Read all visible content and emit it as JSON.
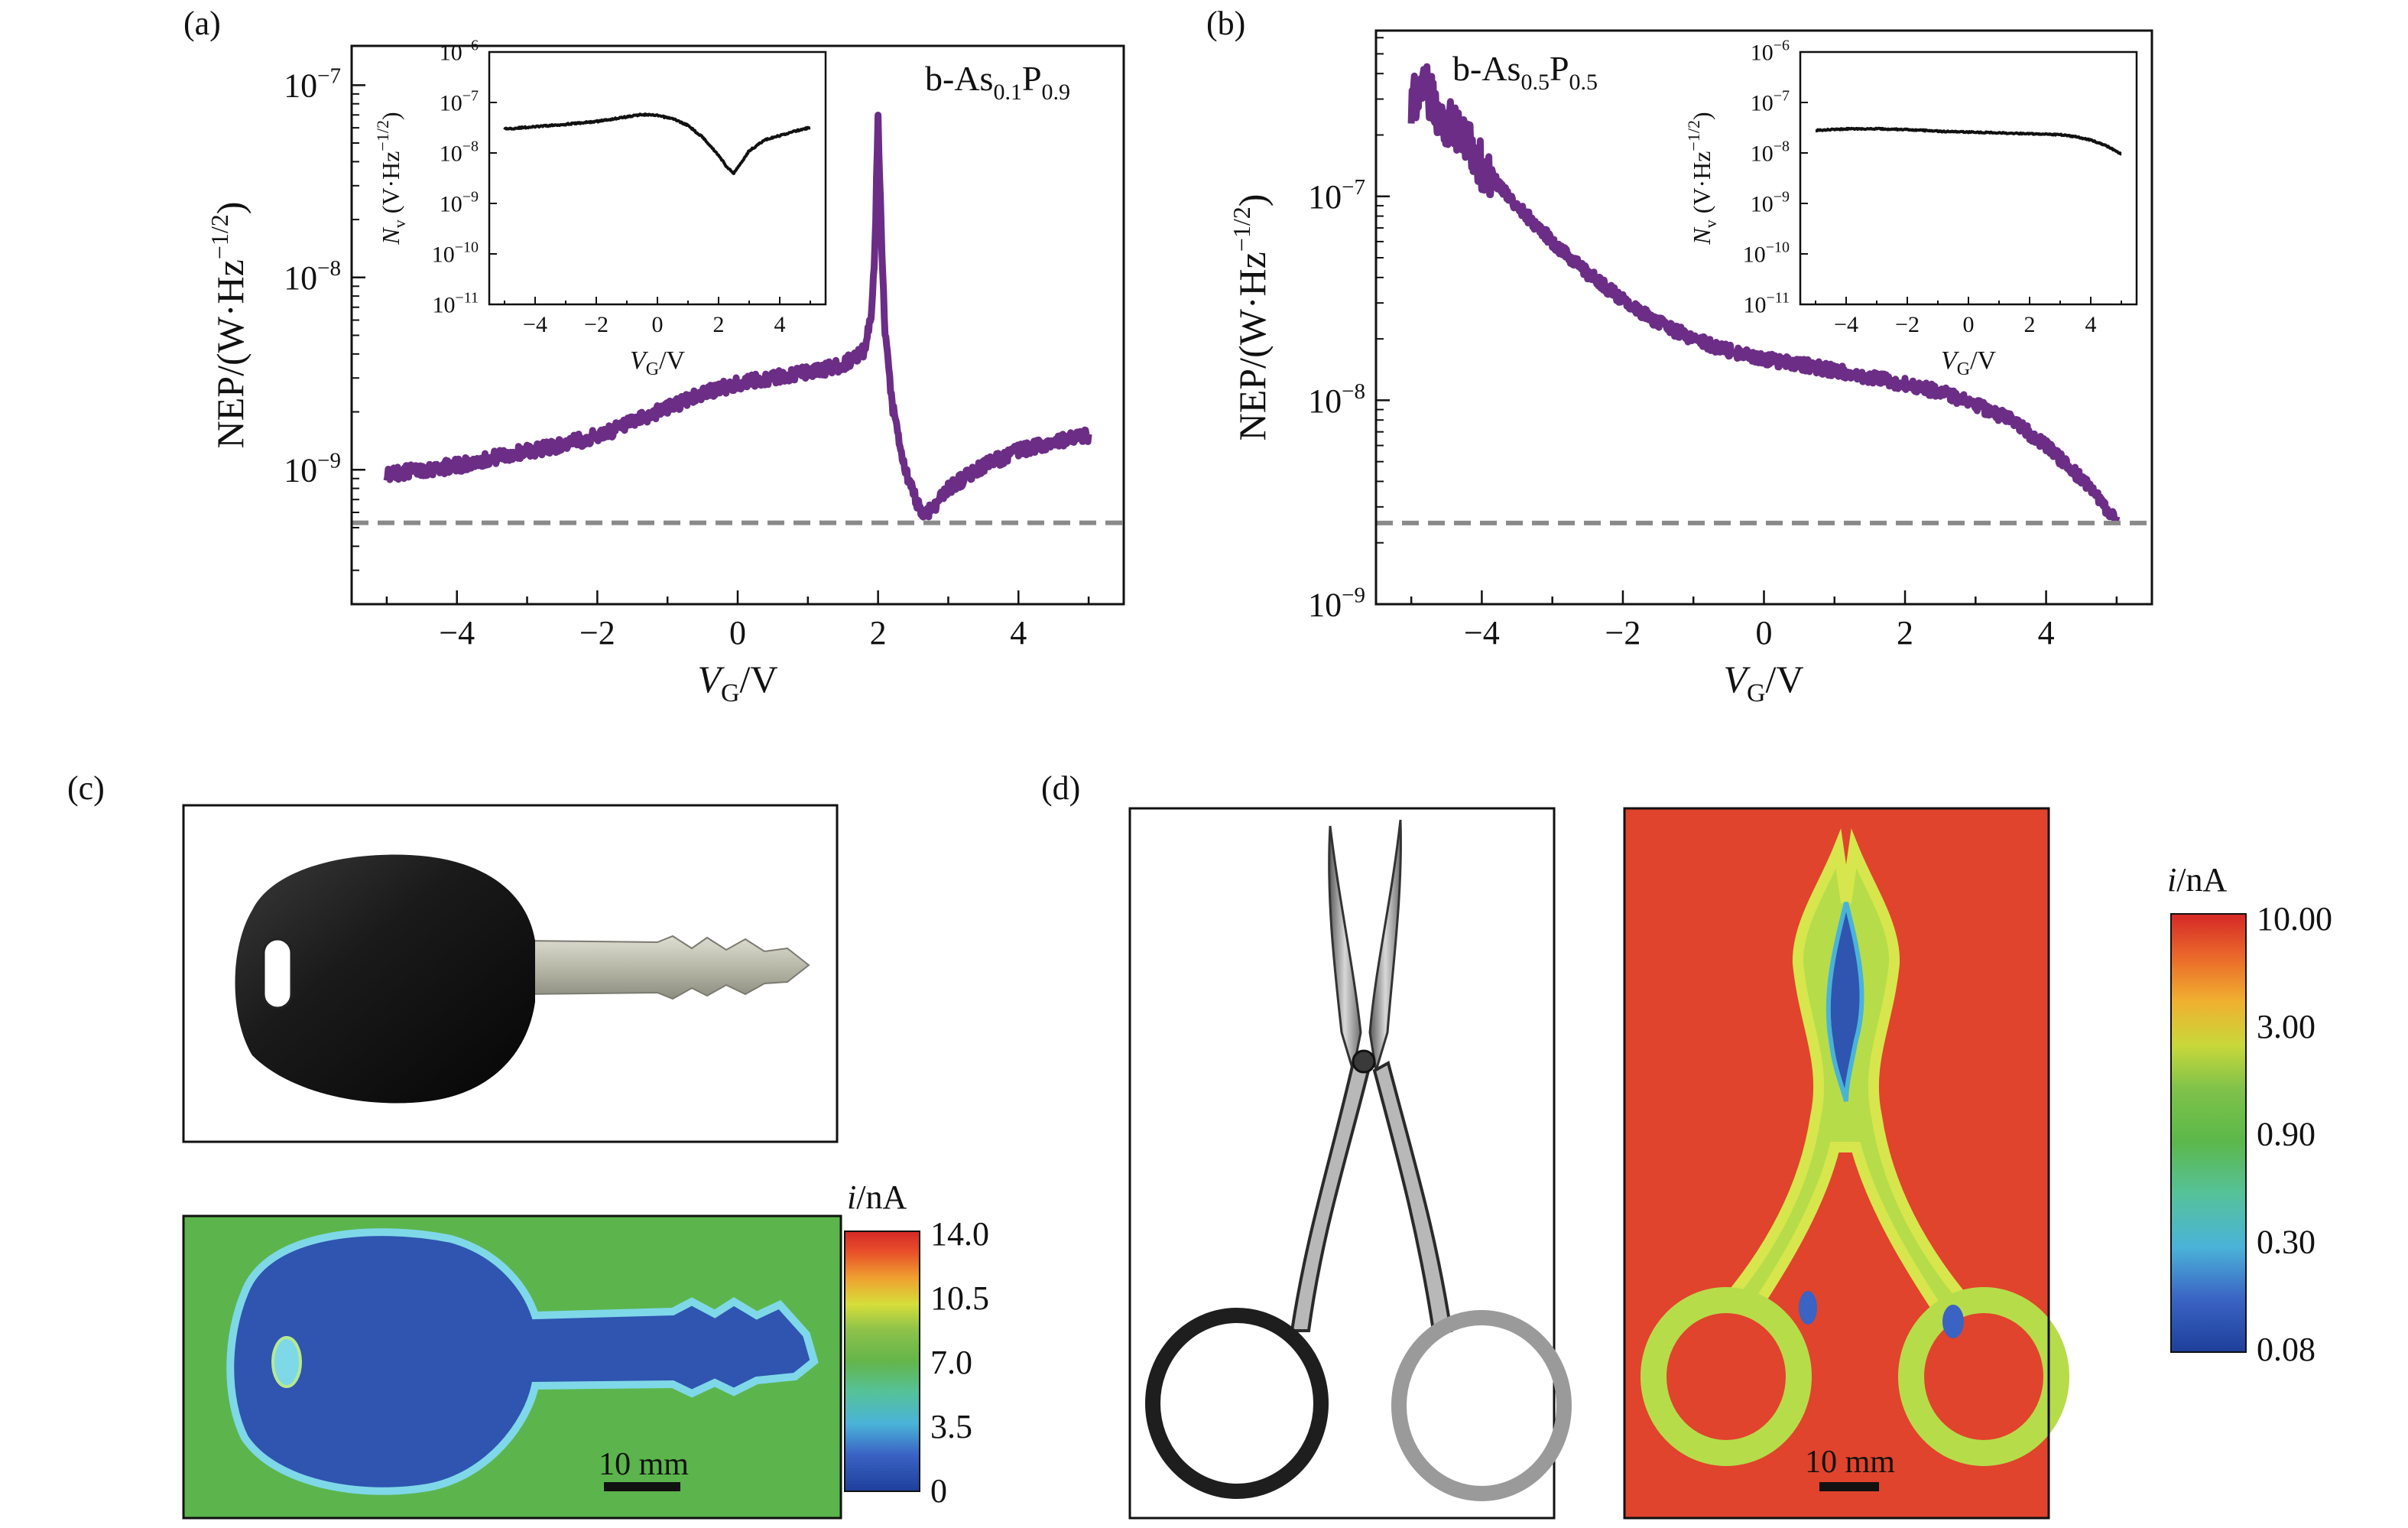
{
  "panel_labels": {
    "a": "(a)",
    "b": "(b)",
    "c": "(c)",
    "d": "(d)"
  },
  "colors": {
    "curve": "#6b2d86",
    "dashed": "#8a8a8a",
    "inset_curve": "#111111"
  },
  "chart_data": [
    {
      "id": "a",
      "type": "line",
      "y_scale": "log",
      "xlabel_main": "V",
      "xlabel_sub": "G",
      "xlabel_unit": "/V",
      "ylabel": "NEP/(W·Hz",
      "ylabel_exp": "−1/2",
      "ylabel_close": ")",
      "xlim": [
        -5.5,
        5.5
      ],
      "ylim": [
        2e-10,
        1.6e-07
      ],
      "x_ticks": [
        -4,
        -2,
        0,
        2,
        4
      ],
      "x_tick_labels": [
        "−4",
        "−2",
        "0",
        "2",
        "4"
      ],
      "y_ticks": [
        1e-09,
        1e-08,
        1e-07
      ],
      "y_tick_labels": [
        {
          "base": "10",
          "exp": "−9"
        },
        {
          "base": "10",
          "exp": "−8"
        },
        {
          "base": "10",
          "exp": "−7"
        }
      ],
      "annotation": {
        "prefix": "b-As",
        "sub1": "0.1",
        "mid": "P",
        "sub2": "0.9"
      },
      "dashed_level": 5.3e-10,
      "series": [
        {
          "x": [
            -5,
            -4.5,
            -4,
            -3.5,
            -3,
            -2.5,
            -2,
            -1.5,
            -1,
            -0.5,
            0,
            0.5,
            1,
            1.5,
            1.8,
            1.9,
            1.95,
            2.0,
            2.05,
            2.1,
            2.2,
            2.35,
            2.5,
            2.65,
            2.8,
            3.0,
            3.5,
            4,
            4.5,
            5
          ],
          "y": [
            9.5e-10,
            1e-09,
            1.05e-09,
            1.15e-09,
            1.25e-09,
            1.35e-09,
            1.5e-09,
            1.75e-09,
            2.1e-09,
            2.5e-09,
            2.8e-09,
            3e-09,
            3.2e-09,
            3.5e-09,
            4.2e-09,
            6e-09,
            1.2e-08,
            6.5e-08,
            1.5e-08,
            5e-09,
            2.2e-09,
            1.1e-09,
            7.5e-10,
            5.8e-10,
            6.5e-10,
            8e-10,
            1.05e-09,
            1.25e-09,
            1.4e-09,
            1.5e-09
          ]
        }
      ],
      "inset": {
        "xlabel_main": "V",
        "xlabel_sub": "G",
        "xlabel_unit": "/V",
        "ylabel_main": "N",
        "ylabel_sub": "v",
        "ylabel_unit": " (V·Hz",
        "ylabel_exp": "−1/2",
        "ylabel_close": ")",
        "xlim": [
          -5.5,
          5.5
        ],
        "ylim": [
          1e-11,
          1e-06
        ],
        "x_ticks": [
          -4,
          -2,
          0,
          2,
          4
        ],
        "x_tick_labels": [
          "−4",
          "−2",
          "0",
          "2",
          "4"
        ],
        "y_ticks": [
          1e-11,
          1e-10,
          1e-09,
          1e-08,
          1e-07,
          1e-06
        ],
        "y_tick_labels": [
          {
            "base": "10",
            "exp": "−11"
          },
          {
            "base": "10",
            "exp": "−10"
          },
          {
            "base": "10",
            "exp": "−9"
          },
          {
            "base": "10",
            "exp": "−8"
          },
          {
            "base": "10",
            "exp": "−7"
          },
          {
            "base": "10",
            "exp": "−6"
          }
        ],
        "series": [
          {
            "x": [
              -5,
              -4,
              -3,
              -2,
              -1,
              -0.5,
              0,
              0.5,
              1,
              1.5,
              2,
              2.3,
              2.5,
              2.7,
              3,
              3.5,
              4,
              4.5,
              5
            ],
            "y": [
              3e-08,
              3.3e-08,
              3.7e-08,
              4.2e-08,
              5.2e-08,
              5.8e-08,
              5.5e-08,
              4.8e-08,
              3.5e-08,
              2e-08,
              9e-09,
              5e-09,
              4e-09,
              6e-09,
              1.1e-08,
              1.8e-08,
              2.2e-08,
              2.7e-08,
              3.2e-08
            ]
          }
        ]
      }
    },
    {
      "id": "b",
      "type": "line",
      "y_scale": "log",
      "xlabel_main": "V",
      "xlabel_sub": "G",
      "xlabel_unit": "/V",
      "ylabel": "NEP/(W·Hz",
      "ylabel_exp": "−1/2",
      "ylabel_close": ")",
      "xlim": [
        -5.5,
        5.5
      ],
      "ylim": [
        1e-09,
        6.5e-07
      ],
      "x_ticks": [
        -4,
        -2,
        0,
        2,
        4
      ],
      "x_tick_labels": [
        "−4",
        "−2",
        "0",
        "2",
        "4"
      ],
      "y_ticks": [
        1e-09,
        1e-08,
        1e-07
      ],
      "y_tick_labels": [
        {
          "base": "10",
          "exp": "−9"
        },
        {
          "base": "10",
          "exp": "−8"
        },
        {
          "base": "10",
          "exp": "−7"
        }
      ],
      "annotation": {
        "prefix": "b-As",
        "sub1": "0.5",
        "mid": "P",
        "sub2": "0.5"
      },
      "dashed_level": 2.5e-09,
      "series": [
        {
          "x": [
            -5,
            -4.8,
            -4.6,
            -4.4,
            -4.2,
            -4.0,
            -3.5,
            -3.0,
            -2.5,
            -2.0,
            -1.5,
            -1.0,
            -0.5,
            0,
            0.5,
            1.0,
            1.5,
            2.0,
            2.5,
            3.0,
            3.5,
            4.0,
            4.3,
            4.6,
            4.8,
            5.0
          ],
          "y": [
            3e-07,
            3.5e-07,
            2.5e-07,
            2.2e-07,
            1.8e-07,
            1.4e-07,
            9e-08,
            6e-08,
            4.2e-08,
            3.1e-08,
            2.4e-08,
            2e-08,
            1.75e-08,
            1.6e-08,
            1.5e-08,
            1.4e-08,
            1.3e-08,
            1.2e-08,
            1.1e-08,
            9.5e-09,
            8e-09,
            6e-09,
            4.8e-09,
            3.8e-09,
            3.1e-09,
            2.6e-09
          ]
        }
      ],
      "inset": {
        "xlabel_main": "V",
        "xlabel_sub": "G",
        "xlabel_unit": "/V",
        "ylabel_main": "N",
        "ylabel_sub": "v",
        "ylabel_unit": " (V·Hz",
        "ylabel_exp": "−1/2",
        "ylabel_close": ")",
        "xlim": [
          -5.5,
          5.5
        ],
        "ylim": [
          1e-11,
          1e-06
        ],
        "x_ticks": [
          -4,
          -2,
          0,
          2,
          4
        ],
        "x_tick_labels": [
          "−4",
          "−2",
          "0",
          "2",
          "4"
        ],
        "y_ticks": [
          1e-11,
          1e-10,
          1e-09,
          1e-08,
          1e-07,
          1e-06
        ],
        "y_tick_labels": [
          {
            "base": "10",
            "exp": "−11"
          },
          {
            "base": "10",
            "exp": "−10"
          },
          {
            "base": "10",
            "exp": "−9"
          },
          {
            "base": "10",
            "exp": "−8"
          },
          {
            "base": "10",
            "exp": "−7"
          },
          {
            "base": "10",
            "exp": "−6"
          }
        ],
        "series": [
          {
            "x": [
              -5,
              -4,
              -3,
              -2,
              -1,
              0,
              1,
              2,
              3,
              3.5,
              4,
              4.5,
              5
            ],
            "y": [
              2.8e-08,
              3e-08,
              3e-08,
              2.9e-08,
              2.7e-08,
              2.6e-08,
              2.5e-08,
              2.4e-08,
              2.3e-08,
              2.1e-08,
              1.8e-08,
              1.4e-08,
              9.5e-09
            ]
          }
        ]
      }
    }
  ],
  "panel_c": {
    "colorbar": {
      "title_i": "i",
      "title_unit": "/nA",
      "tick_labels": [
        "14.0",
        "10.5",
        "7.0",
        "3.5",
        "0"
      ]
    },
    "scale_bar_label": "10 mm"
  },
  "panel_d": {
    "colorbar": {
      "title_i": "i",
      "title_unit": "/nA",
      "tick_labels": [
        "10.00",
        "3.00",
        "0.90",
        "0.30",
        "0.08"
      ]
    },
    "scale_bar_label": "10 mm"
  }
}
